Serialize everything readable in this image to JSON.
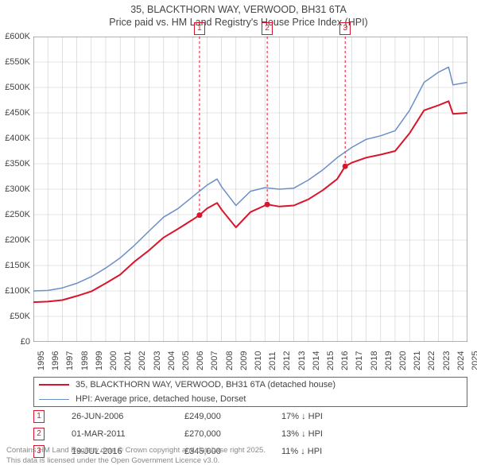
{
  "title_line1": "35, BLACKTHORN WAY, VERWOOD, BH31 6TA",
  "title_line2": "Price paid vs. HM Land Registry's House Price Index (HPI)",
  "chart": {
    "type": "line",
    "background_color": "#ffffff",
    "grid_color": "#cccccc",
    "axis_color": "#666666",
    "x": {
      "min": 1995,
      "max": 2025,
      "ticks": [
        1995,
        1996,
        1997,
        1998,
        1999,
        2000,
        2001,
        2002,
        2003,
        2004,
        2005,
        2006,
        2007,
        2008,
        2009,
        2010,
        2011,
        2012,
        2013,
        2014,
        2015,
        2016,
        2017,
        2018,
        2019,
        2020,
        2021,
        2022,
        2023,
        2024,
        2025
      ],
      "tick_fontsize": 11,
      "rotation": -90
    },
    "y": {
      "min": 0,
      "max": 600000,
      "ticks": [
        0,
        50000,
        100000,
        150000,
        200000,
        250000,
        300000,
        350000,
        400000,
        450000,
        500000,
        550000,
        600000
      ],
      "tick_labels": [
        "£0",
        "£50K",
        "£100K",
        "£150K",
        "£200K",
        "£250K",
        "£300K",
        "£350K",
        "£400K",
        "£450K",
        "£500K",
        "£550K",
        "£600K"
      ],
      "tick_fontsize": 11
    },
    "series": [
      {
        "name": "price_paid",
        "label": "35, BLACKTHORN WAY, VERWOOD, BH31 6TA (detached house)",
        "color": "#d8152b",
        "line_width": 2,
        "x": [
          1995,
          1996,
          1997,
          1998,
          1999,
          2000,
          2001,
          2002,
          2003,
          2004,
          2005,
          2006,
          2006.48,
          2007,
          2007.7,
          2008,
          2009,
          2010,
          2011,
          2011.16,
          2012,
          2013,
          2014,
          2015,
          2016,
          2016.55,
          2017,
          2018,
          2019,
          2020,
          2021,
          2022,
          2023,
          2023.7,
          2024,
          2025
        ],
        "y": [
          78000,
          79000,
          82000,
          90000,
          99000,
          115000,
          132000,
          158000,
          180000,
          205000,
          222000,
          240000,
          249000,
          262000,
          273000,
          260000,
          225000,
          255000,
          268000,
          270000,
          266000,
          268000,
          280000,
          298000,
          320000,
          345000,
          352000,
          362000,
          368000,
          375000,
          410000,
          455000,
          465000,
          473000,
          448000,
          450000
        ]
      },
      {
        "name": "hpi",
        "label": "HPI: Average price, detached house, Dorset",
        "color": "#6a8fc9",
        "line_width": 1.5,
        "x": [
          1995,
          1996,
          1997,
          1998,
          1999,
          2000,
          2001,
          2002,
          2003,
          2004,
          2005,
          2006,
          2007,
          2007.7,
          2008,
          2009,
          2010,
          2011,
          2012,
          2013,
          2014,
          2015,
          2016,
          2017,
          2018,
          2019,
          2020,
          2021,
          2022,
          2023,
          2023.7,
          2024,
          2025
        ],
        "y": [
          100000,
          101000,
          106000,
          115000,
          128000,
          145000,
          165000,
          190000,
          218000,
          245000,
          262000,
          285000,
          308000,
          320000,
          305000,
          268000,
          296000,
          303000,
          300000,
          302000,
          318000,
          338000,
          362000,
          382000,
          398000,
          405000,
          415000,
          455000,
          510000,
          530000,
          540000,
          505000,
          510000
        ]
      }
    ],
    "sale_markers": [
      {
        "n": "1",
        "color": "#d8152b",
        "x": 2006.48,
        "y": 249000
      },
      {
        "n": "2",
        "color": "#d8152b",
        "x": 2011.16,
        "y": 270000
      },
      {
        "n": "3",
        "color": "#d8152b",
        "x": 2016.55,
        "y": 345000
      }
    ],
    "marker_line_color": "#d8152b",
    "marker_line_dash": "3,3"
  },
  "legend": {
    "border_color": "#666666",
    "items": [
      {
        "color": "#d8152b",
        "width": 2,
        "label": "35, BLACKTHORN WAY, VERWOOD, BH31 6TA (detached house)"
      },
      {
        "color": "#6a8fc9",
        "width": 1.5,
        "label": "HPI: Average price, detached house, Dorset"
      }
    ]
  },
  "sales": [
    {
      "n": "1",
      "color": "#d8152b",
      "date": "26-JUN-2006",
      "price": "£249,000",
      "vs": "17% ↓ HPI"
    },
    {
      "n": "2",
      "color": "#d8152b",
      "date": "01-MAR-2011",
      "price": "£270,000",
      "vs": "13% ↓ HPI"
    },
    {
      "n": "3",
      "color": "#d8152b",
      "date": "19-JUL-2016",
      "price": "£345,000",
      "vs": "11% ↓ HPI"
    }
  ],
  "attribution_line1": "Contains HM Land Registry data © Crown copyright and database right 2025.",
  "attribution_line2": "This data is licensed under the Open Government Licence v3.0."
}
